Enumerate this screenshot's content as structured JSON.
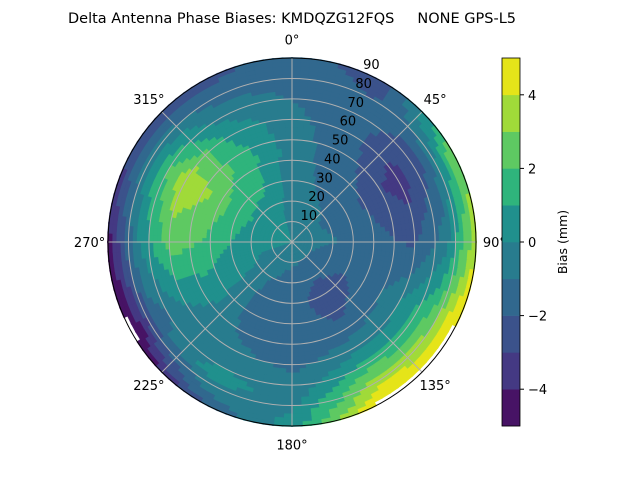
{
  "chart_data": {
    "type": "heatmap",
    "subtype": "polar-contour",
    "title": "Delta Antenna Phase Biases: KMDQZG12FQS     NONE GPS-L5",
    "theta_direction": "clockwise",
    "theta_zero": "top",
    "theta_tick_labels": [
      "0°",
      "45°",
      "90°",
      "135°",
      "180°",
      "225°",
      "270°",
      "315°"
    ],
    "theta_ticks": [
      0,
      45,
      90,
      135,
      180,
      225,
      270,
      315
    ],
    "r_tick_labels": [
      "10",
      "20",
      "30",
      "40",
      "50",
      "60",
      "70",
      "80",
      "90"
    ],
    "r_ticks": [
      10,
      20,
      30,
      40,
      50,
      60,
      70,
      80,
      90
    ],
    "rlim": [
      0,
      90
    ],
    "grid": true,
    "azimuth": [
      0,
      30,
      60,
      90,
      120,
      150,
      180,
      210,
      240,
      270,
      300,
      330
    ],
    "zenith": [
      0,
      15,
      30,
      45,
      60,
      75,
      90
    ],
    "z": [
      [
        0.0,
        -0.3,
        -0.5,
        -0.5,
        -0.7,
        -1.2,
        -1.5
      ],
      [
        0.0,
        -0.6,
        -1.2,
        -1.5,
        -1.6,
        -1.8,
        -2.5
      ],
      [
        0.0,
        -1.0,
        -1.5,
        -2.5,
        -3.6,
        -2.0,
        3.0
      ],
      [
        0.0,
        -0.8,
        -1.2,
        -1.8,
        -2.2,
        -0.5,
        3.6
      ],
      [
        0.0,
        -1.5,
        -2.0,
        -1.5,
        0.0,
        2.0,
        5.5
      ],
      [
        0.0,
        -1.5,
        -2.6,
        -2.0,
        -0.5,
        2.5,
        5.5
      ],
      [
        0.0,
        -1.2,
        -1.5,
        -1.5,
        -1.2,
        -0.5,
        0.5
      ],
      [
        0.0,
        -0.8,
        -1.3,
        -1.3,
        -0.8,
        0.5,
        -2.0
      ],
      [
        0.0,
        -0.2,
        0.3,
        0.5,
        0.0,
        -1.5,
        -5.5
      ],
      [
        0.0,
        0.3,
        1.0,
        2.0,
        2.5,
        0.0,
        -4.5
      ],
      [
        0.0,
        0.5,
        1.5,
        3.0,
        3.8,
        1.0,
        -3.0
      ],
      [
        0.0,
        0.3,
        1.2,
        1.6,
        0.8,
        -0.8,
        -2.5
      ]
    ],
    "levels": [
      -5,
      -4,
      -3,
      -2,
      -1,
      0,
      1,
      2,
      3,
      4,
      5
    ],
    "colormap": "viridis",
    "level_colors": [
      "#471365",
      "#443983",
      "#3b528b",
      "#31688e",
      "#287c8e",
      "#20908d",
      "#2fb47c",
      "#5ec962",
      "#a0da39",
      "#e5e419"
    ],
    "colorbar": {
      "label": "Bias (mm)",
      "ticks": [
        -4,
        -2,
        0,
        2,
        4
      ],
      "tick_labels": [
        "−4",
        "−2",
        "0",
        "2",
        "4"
      ],
      "range": [
        -5,
        5
      ]
    }
  }
}
